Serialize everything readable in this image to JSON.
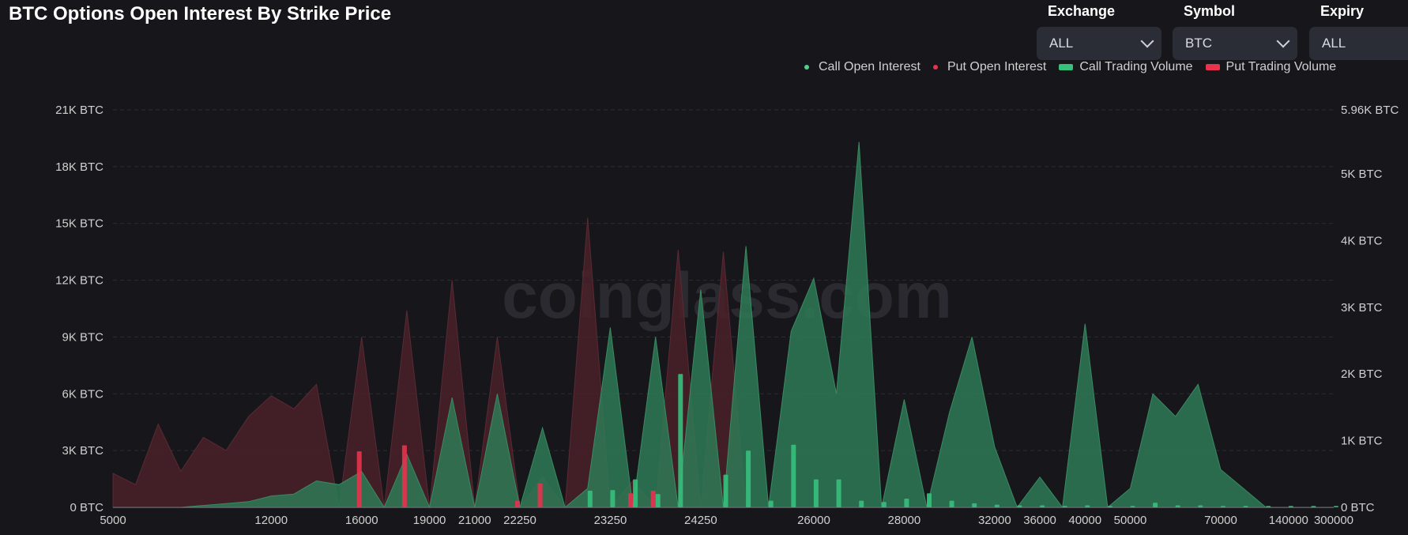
{
  "header": {
    "title": "BTC Options Open Interest By Strike Price"
  },
  "filters": [
    {
      "label": "Exchange",
      "value": "ALL"
    },
    {
      "label": "Symbol",
      "value": "BTC"
    },
    {
      "label": "Expiry",
      "value": "ALL"
    }
  ],
  "watermark": "coinglass.com",
  "colors": {
    "call": "#2fae6e",
    "call_area": "#2e7a56",
    "put": "#e8334f",
    "put_area": "#4a2129",
    "background": "#17171b",
    "grid": "#2c2c33",
    "axis_text": "#d0d0d0"
  },
  "chart_data": {
    "type": "area",
    "categories": [
      "5000",
      "6000",
      "7000",
      "8000",
      "9000",
      "10000",
      "11000",
      "12000",
      "13000",
      "14000",
      "15000",
      "16000",
      "17000",
      "18000",
      "19000",
      "20000",
      "21000",
      "22000",
      "22250",
      "22500",
      "22750",
      "23000",
      "23250",
      "23500",
      "23750",
      "24000",
      "24250",
      "24500",
      "24750",
      "25000",
      "25500",
      "26000",
      "26500",
      "27000",
      "27500",
      "28000",
      "29000",
      "30000",
      "31000",
      "32000",
      "34000",
      "36000",
      "38000",
      "40000",
      "45000",
      "50000",
      "55000",
      "60000",
      "65000",
      "70000",
      "80000",
      "100000",
      "140000",
      "200000",
      "300000"
    ],
    "x_tick_labels": [
      "5000",
      "12000",
      "16000",
      "19000",
      "21000",
      "22250",
      "23250",
      "24250",
      "26000",
      "28000",
      "32000",
      "36000",
      "40000",
      "50000",
      "70000",
      "140000",
      "300000"
    ],
    "y_left": {
      "ticks": [
        "0 BTC",
        "3K BTC",
        "6K BTC",
        "9K BTC",
        "12K BTC",
        "15K BTC",
        "18K BTC",
        "21K BTC"
      ],
      "ylim": [
        0,
        21000
      ]
    },
    "y_right": {
      "ticks": [
        "0 BTC",
        "1K BTC",
        "2K BTC",
        "3K BTC",
        "4K BTC",
        "5K BTC",
        "5.96K BTC"
      ],
      "ylim": [
        0,
        5960
      ]
    },
    "legend_position": "top-right",
    "grid": true,
    "series": [
      {
        "name": "Call Open Interest",
        "axis": "left",
        "style": "area",
        "values": [
          0,
          0,
          0,
          0,
          100,
          200,
          300,
          600,
          700,
          1400,
          1200,
          1900,
          0,
          2800,
          0,
          5800,
          0,
          6000,
          0,
          4200,
          0,
          1000,
          9500,
          0,
          9000,
          0,
          11500,
          0,
          13800,
          0,
          9300,
          12100,
          6000,
          19300,
          0,
          5700,
          0,
          5000,
          9000,
          3200,
          0,
          1600,
          0,
          9700,
          0,
          1000,
          6000,
          4800,
          6500,
          2000,
          1000,
          0,
          0,
          0,
          0
        ]
      },
      {
        "name": "Put  Open Interest",
        "axis": "left",
        "style": "area",
        "values": [
          1800,
          1200,
          4400,
          1900,
          3700,
          3000,
          4800,
          5900,
          5200,
          6500,
          0,
          9000,
          0,
          10400,
          0,
          12000,
          0,
          9000,
          0,
          1600,
          0,
          15300,
          0,
          1400,
          0,
          13600,
          0,
          13500,
          0,
          0,
          0,
          0,
          0,
          0,
          0,
          0,
          0,
          0,
          0,
          0,
          0,
          0,
          0,
          0,
          0,
          0,
          0,
          0,
          0,
          0,
          0,
          0,
          0,
          0,
          0
        ]
      },
      {
        "name": "Call Trading Volume",
        "axis": "right",
        "style": "bar",
        "values": [
          0,
          0,
          0,
          0,
          0,
          0,
          0,
          0,
          0,
          0,
          0,
          0,
          0,
          0,
          0,
          0,
          0,
          0,
          0,
          0,
          0,
          250,
          260,
          420,
          200,
          2000,
          0,
          490,
          850,
          100,
          940,
          420,
          420,
          100,
          80,
          130,
          210,
          100,
          60,
          40,
          30,
          30,
          20,
          30,
          20,
          20,
          70,
          30,
          30,
          20,
          20,
          20,
          20,
          20,
          20
        ]
      },
      {
        "name": "Put  Trading Volume",
        "axis": "right",
        "style": "bar",
        "values": [
          0,
          0,
          0,
          0,
          0,
          0,
          0,
          0,
          0,
          0,
          0,
          840,
          0,
          930,
          0,
          0,
          0,
          0,
          100,
          360,
          0,
          0,
          0,
          210,
          250,
          0,
          0,
          0,
          0,
          0,
          0,
          0,
          0,
          0,
          0,
          0,
          0,
          0,
          0,
          0,
          0,
          0,
          0,
          0,
          0,
          0,
          0,
          0,
          0,
          0,
          0,
          0,
          0,
          0,
          0
        ]
      }
    ]
  }
}
